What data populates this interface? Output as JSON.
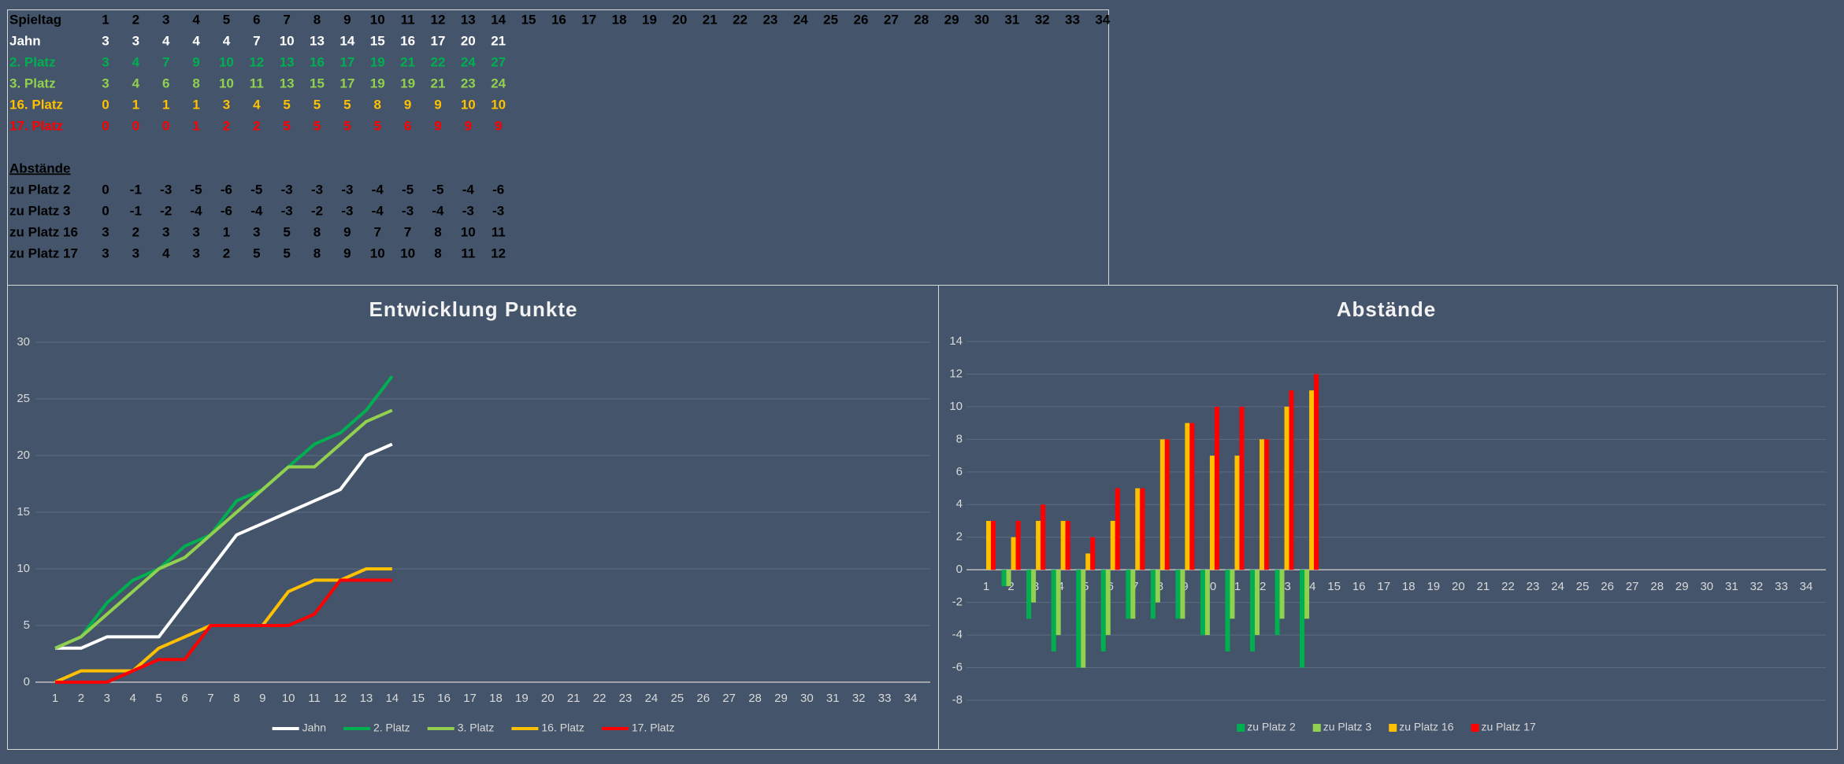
{
  "table": {
    "header": {
      "label": "Spieltag",
      "values": [
        1,
        2,
        3,
        4,
        5,
        6,
        7,
        8,
        9,
        10,
        11,
        12,
        13,
        14,
        15,
        16,
        17,
        18,
        19,
        20,
        21,
        22,
        23,
        24,
        25,
        26,
        27,
        28,
        29,
        30,
        31,
        32,
        33,
        34
      ]
    },
    "rows": [
      {
        "label": "Jahn",
        "color": "#ffffff",
        "values": [
          3,
          3,
          4,
          4,
          4,
          7,
          10,
          13,
          14,
          15,
          16,
          17,
          20,
          21
        ]
      },
      {
        "label": "2. Platz",
        "color": "#00b050",
        "values": [
          3,
          4,
          7,
          9,
          10,
          12,
          13,
          16,
          17,
          19,
          21,
          22,
          24,
          27
        ]
      },
      {
        "label": "3. Platz",
        "color": "#92d050",
        "values": [
          3,
          4,
          6,
          8,
          10,
          11,
          13,
          15,
          17,
          19,
          19,
          21,
          23,
          24
        ]
      },
      {
        "label": "16. Platz",
        "color": "#ffc000",
        "values": [
          0,
          1,
          1,
          1,
          3,
          4,
          5,
          5,
          5,
          8,
          9,
          9,
          10,
          10
        ]
      },
      {
        "label": "17. Platz",
        "color": "#ff0000",
        "values": [
          0,
          0,
          0,
          1,
          2,
          2,
          5,
          5,
          5,
          5,
          6,
          9,
          9,
          9
        ]
      }
    ],
    "section": "Abstände",
    "diff_rows": [
      {
        "label": "zu Platz 2",
        "values": [
          0,
          -1,
          -3,
          -5,
          -6,
          -5,
          -3,
          -3,
          -3,
          -4,
          -5,
          -5,
          -4,
          -6
        ]
      },
      {
        "label": "zu Platz 3",
        "values": [
          0,
          -1,
          -2,
          -4,
          -6,
          -4,
          -3,
          -2,
          -3,
          -4,
          -3,
          -4,
          -3,
          -3
        ]
      },
      {
        "label": "zu Platz 16",
        "values": [
          3,
          2,
          3,
          3,
          1,
          3,
          5,
          8,
          9,
          7,
          7,
          8,
          10,
          11
        ]
      },
      {
        "label": "zu Platz 17",
        "values": [
          3,
          3,
          4,
          3,
          2,
          5,
          5,
          8,
          9,
          10,
          10,
          8,
          11,
          12
        ]
      }
    ]
  },
  "chart_data": [
    {
      "type": "line",
      "title": "Entwicklung Punkte",
      "categories": [
        1,
        2,
        3,
        4,
        5,
        6,
        7,
        8,
        9,
        10,
        11,
        12,
        13,
        14,
        15,
        16,
        17,
        18,
        19,
        20,
        21,
        22,
        23,
        24,
        25,
        26,
        27,
        28,
        29,
        30,
        31,
        32,
        33,
        34
      ],
      "ylim": [
        0,
        30
      ],
      "yticks": [
        0,
        5,
        10,
        15,
        20,
        25,
        30
      ],
      "grid": true,
      "legend": "bottom",
      "series": [
        {
          "name": "Jahn",
          "color": "#ffffff",
          "values": [
            3,
            3,
            4,
            4,
            4,
            7,
            10,
            13,
            14,
            15,
            16,
            17,
            20,
            21,
            null,
            null,
            null,
            null,
            null,
            null,
            null,
            null,
            null,
            null,
            null,
            null,
            null,
            null,
            null,
            null,
            null,
            null,
            null,
            null
          ]
        },
        {
          "name": "2. Platz",
          "color": "#00b050",
          "values": [
            3,
            4,
            7,
            9,
            10,
            12,
            13,
            16,
            17,
            19,
            21,
            22,
            24,
            27,
            null,
            null,
            null,
            null,
            null,
            null,
            null,
            null,
            null,
            null,
            null,
            null,
            null,
            null,
            null,
            null,
            null,
            null,
            null,
            null
          ]
        },
        {
          "name": "3. Platz",
          "color": "#92d050",
          "values": [
            3,
            4,
            6,
            8,
            10,
            11,
            13,
            15,
            17,
            19,
            19,
            21,
            23,
            24,
            null,
            null,
            null,
            null,
            null,
            null,
            null,
            null,
            null,
            null,
            null,
            null,
            null,
            null,
            null,
            null,
            null,
            null,
            null,
            null
          ]
        },
        {
          "name": "16. Platz",
          "color": "#ffc000",
          "values": [
            0,
            1,
            1,
            1,
            3,
            4,
            5,
            5,
            5,
            8,
            9,
            9,
            10,
            10,
            null,
            null,
            null,
            null,
            null,
            null,
            null,
            null,
            null,
            null,
            null,
            null,
            null,
            null,
            null,
            null,
            null,
            null,
            null,
            null
          ]
        },
        {
          "name": "17. Platz",
          "color": "#ff0000",
          "values": [
            0,
            0,
            0,
            1,
            2,
            2,
            5,
            5,
            5,
            5,
            6,
            9,
            9,
            9,
            null,
            null,
            null,
            null,
            null,
            null,
            null,
            null,
            null,
            null,
            null,
            null,
            null,
            null,
            null,
            null,
            null,
            null,
            null,
            null
          ]
        }
      ]
    },
    {
      "type": "bar",
      "title": "Abstände",
      "categories": [
        1,
        2,
        3,
        4,
        5,
        6,
        7,
        8,
        9,
        10,
        11,
        12,
        13,
        14,
        15,
        16,
        17,
        18,
        19,
        20,
        21,
        22,
        23,
        24,
        25,
        26,
        27,
        28,
        29,
        30,
        31,
        32,
        33,
        34
      ],
      "ylim": [
        -8,
        14
      ],
      "yticks": [
        -8,
        -6,
        -4,
        -2,
        0,
        2,
        4,
        6,
        8,
        10,
        12,
        14
      ],
      "grid": true,
      "legend": "bottom",
      "series": [
        {
          "name": "zu Platz 2",
          "color": "#00b050",
          "values": [
            0,
            -1,
            -3,
            -5,
            -6,
            -5,
            -3,
            -3,
            -3,
            -4,
            -5,
            -5,
            -4,
            -6,
            null,
            null,
            null,
            null,
            null,
            null,
            null,
            null,
            null,
            null,
            null,
            null,
            null,
            null,
            null,
            null,
            null,
            null,
            null,
            null
          ]
        },
        {
          "name": "zu Platz 3",
          "color": "#92d050",
          "values": [
            0,
            -1,
            -2,
            -4,
            -6,
            -4,
            -3,
            -2,
            -3,
            -4,
            -3,
            -4,
            -3,
            -3,
            null,
            null,
            null,
            null,
            null,
            null,
            null,
            null,
            null,
            null,
            null,
            null,
            null,
            null,
            null,
            null,
            null,
            null,
            null,
            null
          ]
        },
        {
          "name": "zu Platz 16",
          "color": "#ffc000",
          "values": [
            3,
            2,
            3,
            3,
            1,
            3,
            5,
            8,
            9,
            7,
            7,
            8,
            10,
            11,
            null,
            null,
            null,
            null,
            null,
            null,
            null,
            null,
            null,
            null,
            null,
            null,
            null,
            null,
            null,
            null,
            null,
            null,
            null,
            null
          ]
        },
        {
          "name": "zu Platz 17",
          "color": "#ff0000",
          "values": [
            3,
            3,
            4,
            3,
            2,
            5,
            5,
            8,
            9,
            10,
            10,
            8,
            11,
            12,
            null,
            null,
            null,
            null,
            null,
            null,
            null,
            null,
            null,
            null,
            null,
            null,
            null,
            null,
            null,
            null,
            null,
            null,
            null,
            null
          ]
        }
      ]
    }
  ]
}
